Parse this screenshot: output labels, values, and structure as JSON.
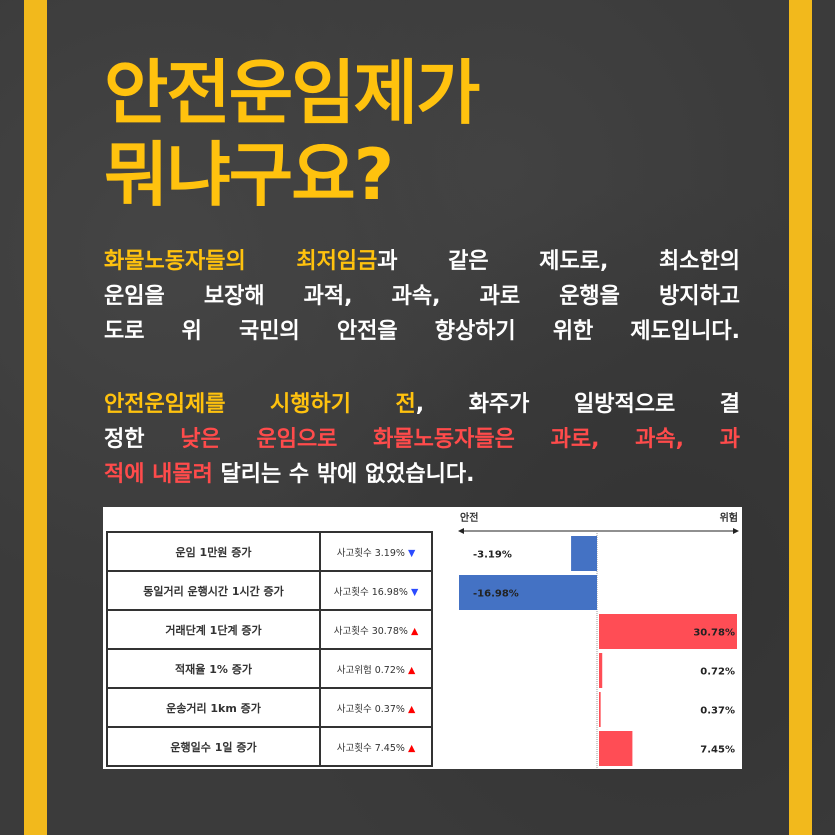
{
  "title": {
    "line1": "안전운임제가",
    "line2": "뭐냐구요?"
  },
  "paragraph1": {
    "l1a": "화물노동자들의 최저임금",
    "l1b": "과 같은 제도로, 최소한의",
    "l2": "운임을 보장해 과적, 과속, 과로 운행을 방지하고",
    "l3": "도로 위 국민의 안전을 향상하기 위한 제도입니다."
  },
  "paragraph2": {
    "l1a": "안전운임제를 시행하기 전",
    "l1b": ", 화주가 일방적으로 결",
    "l2a": "정한 ",
    "l2b": "낮은 운임으로 화물노동자들은 과로, 과속, 과",
    "l3a": "적에 내몰려",
    "l3b": " 달리는 수 밖에 없었습니다."
  },
  "colors": {
    "highlight_yellow": "#ffc20e",
    "highlight_red": "#ff4b4b",
    "stripe": "#f2b91c",
    "safe_bar": "#4472c4",
    "risk_bar": "#ff4d55",
    "background": "#3b3b3b"
  },
  "table": {
    "rows": [
      {
        "factor": "운임 1만원 증가",
        "effect": "사고횟수 3.19%",
        "dir": "down"
      },
      {
        "factor": "동일거리 운행시간 1시간 증가",
        "effect": "사고횟수 16.98%",
        "dir": "down"
      },
      {
        "factor": "거래단계 1단계 증가",
        "effect": "사고횟수 30.78%",
        "dir": "up"
      },
      {
        "factor": "적재율 1% 증가",
        "effect": "사고위험 0.72%",
        "dir": "up"
      },
      {
        "factor": "운송거리 1km 증가",
        "effect": "사고횟수 0.37%",
        "dir": "up"
      },
      {
        "factor": "운행일수 1일 증가",
        "effect": "사고횟수 7.45%",
        "dir": "up"
      }
    ]
  },
  "chart_data": {
    "type": "bar",
    "orientation": "horizontal",
    "diverging": true,
    "axis_left_label": "안전",
    "axis_right_label": "위험",
    "categories": [
      "운임 1만원 증가",
      "동일거리 운행시간 1시간 증가",
      "거래단계 1단계 증가",
      "적재율 1% 증가",
      "운송거리 1km 증가",
      "운행일수 1일 증가"
    ],
    "values": [
      -3.19,
      -16.98,
      30.78,
      0.72,
      0.37,
      7.45
    ],
    "labels": [
      "-3.19%",
      "-16.98%",
      "30.78%",
      "0.72%",
      "0.37%",
      "7.45%"
    ],
    "grid": false
  }
}
